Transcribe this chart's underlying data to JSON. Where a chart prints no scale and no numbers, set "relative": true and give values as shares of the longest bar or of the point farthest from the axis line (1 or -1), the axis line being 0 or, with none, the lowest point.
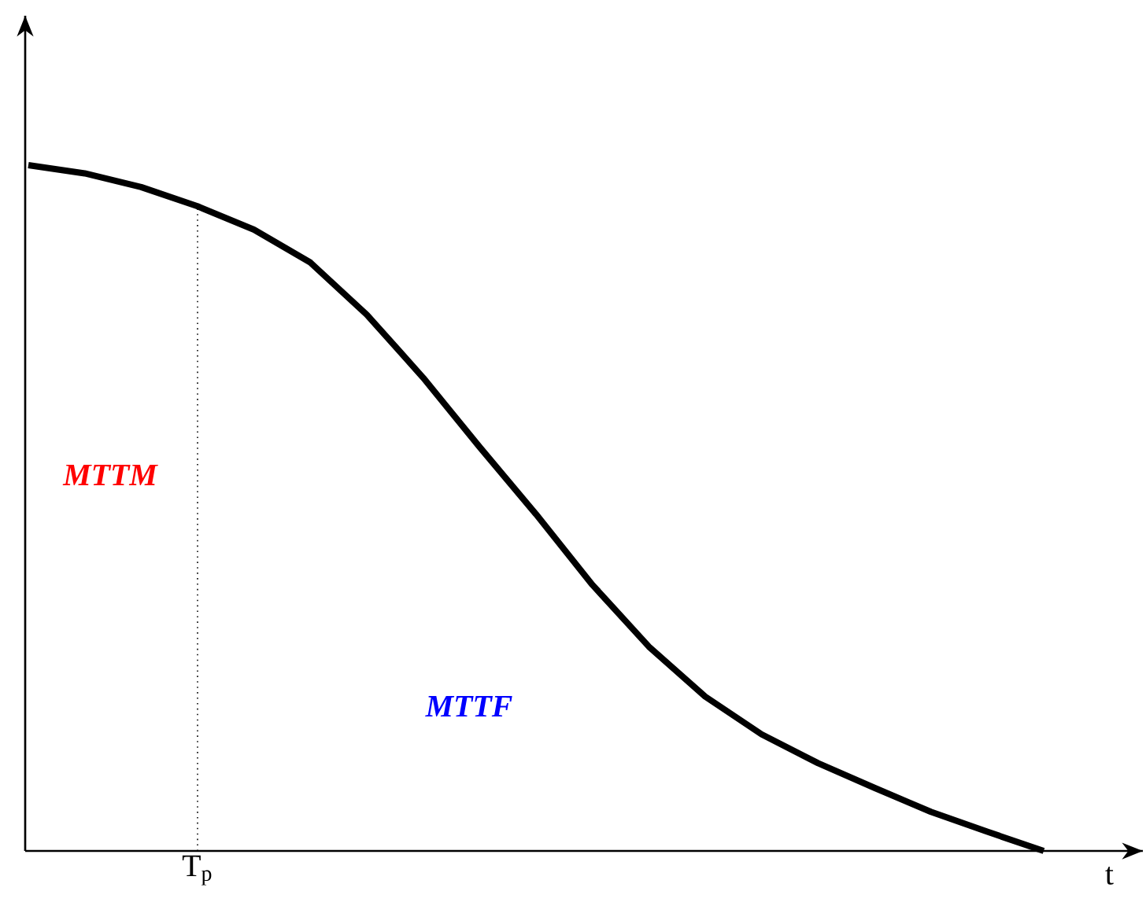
{
  "chart_data": {
    "type": "line",
    "relative": true,
    "xlabel": "t",
    "categories": [
      null,
      null,
      null,
      null,
      null,
      null,
      null,
      null,
      null,
      null,
      null,
      null,
      null,
      null,
      null,
      null,
      null,
      null,
      null
    ],
    "series": [
      {
        "color": "#000000",
        "values": [
          1.0,
          0.988,
          0.968,
          0.94,
          0.906,
          0.858,
          0.782,
          0.69,
          0.589,
          0.491,
          0.388,
          0.298,
          0.225,
          0.17,
          0.128,
          0.092,
          0.057,
          0.028,
          0.0
        ]
      }
    ],
    "annotations": [
      "MTTM",
      "MTTF",
      "T$_{p}$"
    ],
    "marker": "none",
    "line_style": "solid"
  }
}
